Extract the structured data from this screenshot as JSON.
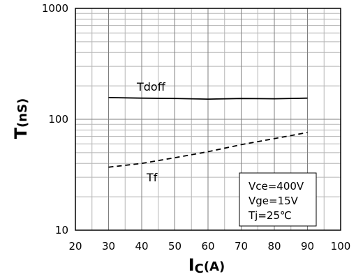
{
  "chart_data": {
    "type": "line",
    "x_scale": "linear",
    "y_scale": "log",
    "xlim": [
      20,
      100
    ],
    "ylim": [
      10,
      1000
    ],
    "x_ticks": [
      "20",
      "30",
      "40",
      "50",
      "60",
      "70",
      "80",
      "90",
      "100"
    ],
    "y_ticks": [
      "10",
      "100",
      "1000"
    ],
    "grid": true,
    "xlabel": {
      "main": "I",
      "sub": "C",
      "unit": "(A)"
    },
    "ylabel": {
      "main": "T",
      "unit": "(nS)"
    },
    "series": [
      {
        "name": "Tdoff",
        "style": "solid",
        "x": [
          30,
          40,
          50,
          60,
          70,
          80,
          90
        ],
        "y": [
          157,
          155,
          154,
          152,
          154,
          153,
          155
        ]
      },
      {
        "name": "Tf",
        "style": "dashed",
        "x": [
          30,
          40,
          50,
          60,
          70,
          80,
          90
        ],
        "y": [
          37,
          40,
          45,
          51,
          59,
          67,
          76
        ]
      }
    ],
    "conditions": [
      "Vce=400V",
      "Vge=15V",
      "Tj=25℃"
    ],
    "colors": {
      "major_grid": "#7f7f7f",
      "minor_grid": "#b5b5b5",
      "line": "#000000",
      "axis": "#000000",
      "background": "#ffffff"
    }
  }
}
